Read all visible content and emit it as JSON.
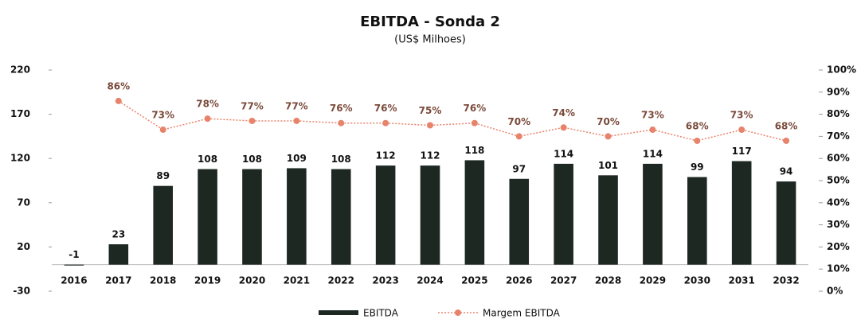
{
  "chart_data": {
    "type": "bar",
    "title": "EBITDA - Sonda 2",
    "subtitle": "(US$ Milhoes)",
    "categories": [
      "2016",
      "2017",
      "2018",
      "2019",
      "2020",
      "2021",
      "2022",
      "2023",
      "2024",
      "2025",
      "2026",
      "2027",
      "2028",
      "2029",
      "2030",
      "2031",
      "2032"
    ],
    "series": [
      {
        "name": "EBITDA",
        "type": "bar",
        "color": "#1e2823",
        "values": [
          -1,
          23,
          89,
          108,
          108,
          109,
          108,
          112,
          112,
          118,
          97,
          114,
          101,
          114,
          99,
          117,
          94
        ]
      },
      {
        "name": "Margem EBITDA",
        "type": "line",
        "axis": "y2",
        "color": "#e8836b",
        "values": [
          null,
          86,
          73,
          78,
          77,
          77,
          76,
          76,
          75,
          76,
          70,
          74,
          70,
          73,
          68,
          73,
          68
        ],
        "value_labels": [
          null,
          "86%",
          "73%",
          "78%",
          "77%",
          "77%",
          "76%",
          "76%",
          "75%",
          "76%",
          "70%",
          "74%",
          "70%",
          "73%",
          "68%",
          "73%",
          "68%"
        ]
      }
    ],
    "ylim": [
      -30,
      220
    ],
    "yticks": [
      -30,
      20,
      70,
      120,
      170,
      220
    ],
    "y2lim": [
      0,
      100
    ],
    "y2ticks": [
      {
        "value": 0,
        "label": "0%"
      },
      {
        "value": 10,
        "label": "10%"
      },
      {
        "value": 20,
        "label": "20%"
      },
      {
        "value": 30,
        "label": "30%"
      },
      {
        "value": 40,
        "label": "40%"
      },
      {
        "value": 50,
        "label": "50%"
      },
      {
        "value": 60,
        "label": "60%"
      },
      {
        "value": 70,
        "label": "70%"
      },
      {
        "value": 80,
        "label": "80%"
      },
      {
        "value": 90,
        "label": "90%"
      },
      {
        "value": 100,
        "label": "100%"
      }
    ],
    "legend": "bottom"
  }
}
